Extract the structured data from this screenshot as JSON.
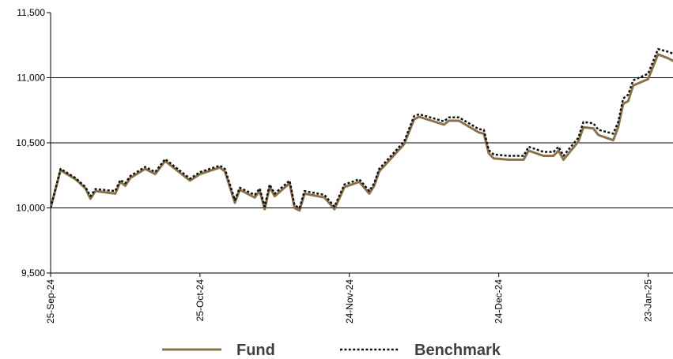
{
  "chart_data": {
    "type": "line",
    "title": "",
    "xlabel": "",
    "ylabel": "",
    "ylim": [
      9500,
      11500
    ],
    "yticks": [
      "9,500",
      "10,000",
      "10,500",
      "11,000",
      "11,500"
    ],
    "ytick_values": [
      9500,
      10000,
      10500,
      11000,
      11500
    ],
    "grid": "horizontal at 10,000, 10,500 and 11,000",
    "legend_position": "bottom-center",
    "x_start": "2024-09-25",
    "x_end": "2025-01-28",
    "xtick_dates": [
      "2024-09-25",
      "2024-10-25",
      "2024-11-24",
      "2024-12-24",
      "2025-01-23"
    ],
    "xticks": [
      "25-Sep-24",
      "25-Oct-24",
      "24-Nov-24",
      "24-Dec-24",
      "23-Jan-25"
    ],
    "series": [
      {
        "name": "Fund",
        "color": "#8a7148",
        "style": "solid",
        "points": [
          [
            "2024-09-25",
            10000
          ],
          [
            "2024-09-27",
            10290
          ],
          [
            "2024-09-30",
            10220
          ],
          [
            "2024-10-02",
            10150
          ],
          [
            "2024-10-03",
            10070
          ],
          [
            "2024-10-04",
            10130
          ],
          [
            "2024-10-08",
            10110
          ],
          [
            "2024-10-09",
            10200
          ],
          [
            "2024-10-10",
            10170
          ],
          [
            "2024-10-11",
            10230
          ],
          [
            "2024-10-14",
            10300
          ],
          [
            "2024-10-16",
            10260
          ],
          [
            "2024-10-18",
            10360
          ],
          [
            "2024-10-23",
            10210
          ],
          [
            "2024-10-25",
            10260
          ],
          [
            "2024-10-29",
            10310
          ],
          [
            "2024-10-30",
            10280
          ],
          [
            "2024-11-01",
            10040
          ],
          [
            "2024-11-02",
            10140
          ],
          [
            "2024-11-05",
            10080
          ],
          [
            "2024-11-06",
            10130
          ],
          [
            "2024-11-07",
            9990
          ],
          [
            "2024-11-08",
            10160
          ],
          [
            "2024-11-09",
            10090
          ],
          [
            "2024-11-12",
            10190
          ],
          [
            "2024-11-13",
            10000
          ],
          [
            "2024-11-14",
            9980
          ],
          [
            "2024-11-15",
            10110
          ],
          [
            "2024-11-19",
            10080
          ],
          [
            "2024-11-21",
            9990
          ],
          [
            "2024-11-23",
            10160
          ],
          [
            "2024-11-26",
            10200
          ],
          [
            "2024-11-28",
            10110
          ],
          [
            "2024-11-29",
            10170
          ],
          [
            "2024-11-30",
            10280
          ],
          [
            "2024-12-05",
            10490
          ],
          [
            "2024-12-07",
            10680
          ],
          [
            "2024-12-08",
            10700
          ],
          [
            "2024-12-13",
            10640
          ],
          [
            "2024-12-14",
            10670
          ],
          [
            "2024-12-16",
            10670
          ],
          [
            "2024-12-20",
            10580
          ],
          [
            "2024-12-21",
            10570
          ],
          [
            "2024-12-22",
            10420
          ],
          [
            "2024-12-23",
            10380
          ],
          [
            "2024-12-26",
            10370
          ],
          [
            "2024-12-29",
            10370
          ],
          [
            "2024-12-30",
            10440
          ],
          [
            "2025-01-02",
            10400
          ],
          [
            "2025-01-04",
            10400
          ],
          [
            "2025-01-05",
            10440
          ],
          [
            "2025-01-06",
            10370
          ],
          [
            "2025-01-09",
            10510
          ],
          [
            "2025-01-10",
            10620
          ],
          [
            "2025-01-12",
            10610
          ],
          [
            "2025-01-13",
            10560
          ],
          [
            "2025-01-16",
            10520
          ],
          [
            "2025-01-17",
            10620
          ],
          [
            "2025-01-18",
            10800
          ],
          [
            "2025-01-19",
            10820
          ],
          [
            "2025-01-20",
            10940
          ],
          [
            "2025-01-23",
            10990
          ],
          [
            "2025-01-25",
            11180
          ],
          [
            "2025-01-27",
            11150
          ],
          [
            "2025-01-29",
            11110
          ],
          [
            "2025-01-30",
            11210
          ]
        ]
      },
      {
        "name": "Benchmark",
        "color": "#111111",
        "style": "dotted",
        "points": [
          [
            "2024-09-25",
            10000
          ],
          [
            "2024-09-27",
            10300
          ],
          [
            "2024-09-30",
            10230
          ],
          [
            "2024-10-02",
            10160
          ],
          [
            "2024-10-03",
            10090
          ],
          [
            "2024-10-04",
            10145
          ],
          [
            "2024-10-08",
            10130
          ],
          [
            "2024-10-09",
            10215
          ],
          [
            "2024-10-10",
            10190
          ],
          [
            "2024-10-11",
            10245
          ],
          [
            "2024-10-14",
            10315
          ],
          [
            "2024-10-16",
            10275
          ],
          [
            "2024-10-18",
            10375
          ],
          [
            "2024-10-23",
            10225
          ],
          [
            "2024-10-25",
            10275
          ],
          [
            "2024-10-29",
            10325
          ],
          [
            "2024-10-30",
            10300
          ],
          [
            "2024-11-01",
            10060
          ],
          [
            "2024-11-02",
            10155
          ],
          [
            "2024-11-05",
            10100
          ],
          [
            "2024-11-06",
            10150
          ],
          [
            "2024-11-07",
            10010
          ],
          [
            "2024-11-08",
            10180
          ],
          [
            "2024-11-09",
            10110
          ],
          [
            "2024-11-12",
            10210
          ],
          [
            "2024-11-13",
            10020
          ],
          [
            "2024-11-14",
            10000
          ],
          [
            "2024-11-15",
            10130
          ],
          [
            "2024-11-19",
            10100
          ],
          [
            "2024-11-21",
            10010
          ],
          [
            "2024-11-23",
            10180
          ],
          [
            "2024-11-26",
            10220
          ],
          [
            "2024-11-28",
            10130
          ],
          [
            "2024-11-29",
            10190
          ],
          [
            "2024-11-30",
            10300
          ],
          [
            "2024-12-05",
            10510
          ],
          [
            "2024-12-07",
            10705
          ],
          [
            "2024-12-08",
            10720
          ],
          [
            "2024-12-13",
            10665
          ],
          [
            "2024-12-14",
            10695
          ],
          [
            "2024-12-16",
            10695
          ],
          [
            "2024-12-20",
            10605
          ],
          [
            "2024-12-21",
            10600
          ],
          [
            "2024-12-22",
            10445
          ],
          [
            "2024-12-23",
            10410
          ],
          [
            "2024-12-26",
            10400
          ],
          [
            "2024-12-29",
            10400
          ],
          [
            "2024-12-30",
            10470
          ],
          [
            "2025-01-02",
            10430
          ],
          [
            "2025-01-04",
            10430
          ],
          [
            "2025-01-05",
            10470
          ],
          [
            "2025-01-06",
            10400
          ],
          [
            "2025-01-09",
            10540
          ],
          [
            "2025-01-10",
            10660
          ],
          [
            "2025-01-12",
            10650
          ],
          [
            "2025-01-13",
            10600
          ],
          [
            "2025-01-16",
            10570
          ],
          [
            "2025-01-17",
            10660
          ],
          [
            "2025-01-18",
            10840
          ],
          [
            "2025-01-19",
            10870
          ],
          [
            "2025-01-20",
            10980
          ],
          [
            "2025-01-23",
            11030
          ],
          [
            "2025-01-25",
            11220
          ],
          [
            "2025-01-27",
            11200
          ],
          [
            "2025-01-29",
            11170
          ],
          [
            "2025-01-30",
            11280
          ]
        ]
      }
    ]
  }
}
